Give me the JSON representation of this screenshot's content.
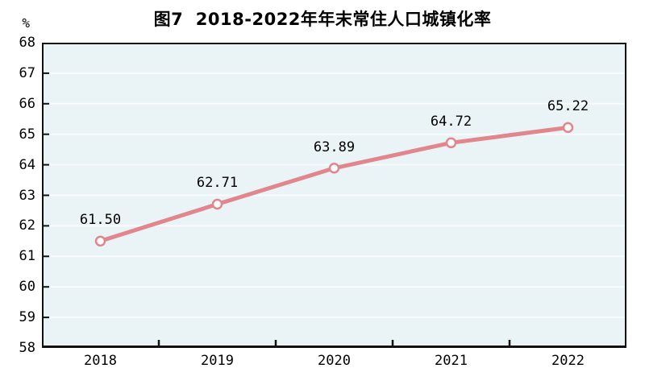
{
  "title": "图7  2018-2022年年末常住人口城镇化率",
  "y_unit": "%",
  "chart_data": {
    "type": "line",
    "title": "图7 2018-2022年年末常住人口城镇化率",
    "categories": [
      "2018",
      "2019",
      "2020",
      "2021",
      "2022"
    ],
    "series": [
      {
        "name": "年末常住人口城镇化率",
        "values": [
          61.5,
          62.71,
          63.89,
          64.72,
          65.22
        ]
      }
    ],
    "data_labels": [
      "61.50",
      "62.71",
      "63.89",
      "64.72",
      "65.22"
    ],
    "y_tick_labels": [
      "68",
      "67",
      "66",
      "65",
      "64",
      "63",
      "62",
      "61",
      "60",
      "59",
      "58"
    ],
    "xlabel": "",
    "ylabel": "%",
    "ylim": [
      58,
      68
    ],
    "ytick_step": 1,
    "grid": true,
    "legend_position": "none",
    "colors": {
      "line": "#e0868c",
      "marker_fill": "#ffffff",
      "plot_bg": "#eaf3f6",
      "gridline": "#f8fcfd",
      "axis": "#111111",
      "text": "#000000"
    }
  }
}
